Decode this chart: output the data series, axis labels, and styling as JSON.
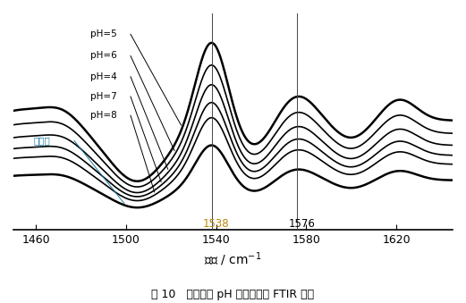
{
  "xmin": 1450,
  "xmax": 1645,
  "xticks": [
    1460,
    1500,
    1540,
    1580,
    1620
  ],
  "vline1": 1538,
  "vline2": 1576,
  "vline1_label": "1538",
  "vline2_label": "1576",
  "vline1_color": "#b8860b",
  "vline2_color": "#000000",
  "labels": [
    "pH=5",
    "pH=6",
    "pH=4",
    "pH=7",
    "pH=8",
    "未染色"
  ],
  "label_colors": [
    "#000000",
    "#000000",
    "#000000",
    "#000000",
    "#000000",
    "#1a7ba4"
  ],
  "caption": "图 10   不同染液 pH 值下氨纶的 FTIR 谱图",
  "bg_color": "#ffffff",
  "curve_scales": [
    1.0,
    0.88,
    0.78,
    0.68,
    0.6,
    0.45
  ],
  "curve_offsets": [
    0.55,
    0.42,
    0.3,
    0.2,
    0.11,
    -0.05
  ],
  "curve_linewidths": [
    1.8,
    1.2,
    1.2,
    1.2,
    1.2,
    1.8
  ]
}
